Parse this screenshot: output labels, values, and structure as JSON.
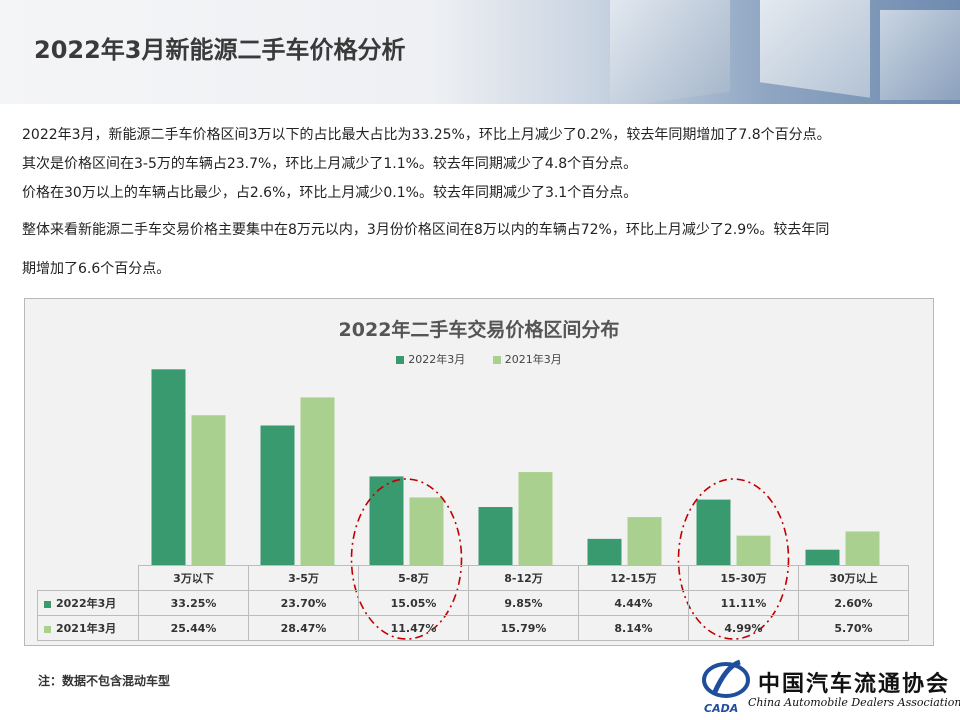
{
  "title": "2022年3月新能源二手车价格分析",
  "paragraphs": [
    "2022年3月，新能源二手车价格区间3万以下的占比最大占比为33.25%，环比上月减少了0.2%，较去年同期增加了7.8个百分点。",
    "其次是价格区间在3-5万的车辆占23.7%，环比上月减少了1.1%。较去年同期减少了4.8个百分点。",
    "价格在30万以上的车辆占比最少，占2.6%，环比上月减少0.1%。较去年同期减少了3.1个百分点。",
    "整体来看新能源二手车交易价格主要集中在8万元以内，3月份价格区间在8万以内的车辆占72%，环比上月减少了2.9%。较去年同",
    "期增加了6.6个百分点。"
  ],
  "chart_data": {
    "type": "bar",
    "title": "2022年二手车交易价格区间分布",
    "categories": [
      "3万以下",
      "3-5万",
      "5-8万",
      "8-12万",
      "12-15万",
      "15-30万",
      "30万以上"
    ],
    "series": [
      {
        "name": "2022年3月",
        "values": [
          33.25,
          23.7,
          15.05,
          9.85,
          4.44,
          11.11,
          2.6
        ],
        "labels": [
          "33.25%",
          "23.70%",
          "15.05%",
          "9.85%",
          "4.44%",
          "11.11%",
          "2.60%"
        ],
        "color": "#3a9a6f"
      },
      {
        "name": "2021年3月",
        "values": [
          25.44,
          28.47,
          11.47,
          15.79,
          8.14,
          4.99,
          5.7
        ],
        "labels": [
          "25.44%",
          "28.47%",
          "11.47%",
          "15.79%",
          "8.14%",
          "4.99%",
          "5.70%"
        ],
        "color": "#a9d08e"
      }
    ],
    "ylim": [
      0,
      35
    ],
    "legend": "top-center",
    "grid": false,
    "data_table": true,
    "highlight_categories": [
      "5-8万",
      "15-30万"
    ],
    "highlight_color": "#c00000"
  },
  "note": "注：数据不包含混动车型",
  "logo": {
    "text_cn": "中国汽车流通协会",
    "text_en": "China Automobile Dealers Association",
    "mark": "CADA"
  }
}
